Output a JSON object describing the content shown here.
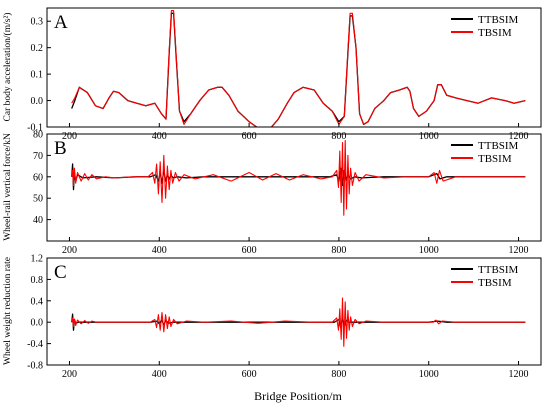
{
  "colors": {
    "TTBSIM": "#000000",
    "TBSIM": "#ff0000"
  },
  "xlabel": "Bridge Position/m",
  "chart_data": [
    {
      "type": "line",
      "panel_letter": "A",
      "ylabel": "Car body acceleration/(m/s²)",
      "xlim": [
        150,
        1250
      ],
      "ylim": [
        -0.1,
        0.35
      ],
      "xticks": [
        200,
        400,
        600,
        800,
        1000,
        1200
      ],
      "yticks": [
        -0.1,
        0.0,
        0.1,
        0.2,
        0.3
      ],
      "ytick_labels": [
        "-0.1",
        "0.0",
        "0.1",
        "0.2",
        "0.3"
      ],
      "legend_position": "top-right",
      "series": [
        {
          "name": "TTBSIM",
          "x": [
            205,
            212,
            222,
            240,
            258,
            275,
            288,
            298,
            310,
            330,
            350,
            370,
            390,
            405,
            415,
            422,
            427,
            432,
            437,
            445,
            455,
            470,
            490,
            510,
            530,
            540,
            555,
            575,
            600,
            625,
            645,
            665,
            685,
            700,
            720,
            745,
            765,
            785,
            800,
            812,
            820,
            825,
            830,
            838,
            846,
            855,
            865,
            880,
            900,
            915,
            935,
            952,
            958,
            966,
            978,
            995,
            1012,
            1020,
            1028,
            1040,
            1060,
            1085,
            1110,
            1140,
            1170,
            1190,
            1215
          ],
          "y": [
            -0.03,
            0.0,
            0.05,
            0.03,
            -0.02,
            -0.03,
            0.01,
            0.035,
            0.03,
            0.0,
            -0.01,
            -0.02,
            -0.01,
            -0.05,
            -0.07,
            0.18,
            0.33,
            0.33,
            0.18,
            -0.04,
            -0.08,
            -0.05,
            0.0,
            0.04,
            0.05,
            0.05,
            0.02,
            -0.04,
            -0.08,
            -0.11,
            -0.11,
            -0.07,
            -0.01,
            0.03,
            0.05,
            0.04,
            -0.01,
            -0.04,
            -0.08,
            -0.06,
            0.18,
            0.32,
            0.32,
            0.2,
            -0.05,
            -0.09,
            -0.08,
            -0.03,
            0.0,
            0.03,
            0.04,
            0.05,
            0.035,
            -0.03,
            -0.06,
            -0.04,
            0.0,
            0.06,
            0.06,
            0.02,
            0.01,
            0.0,
            -0.01,
            0.01,
            0.0,
            -0.01,
            0.0
          ]
        },
        {
          "name": "TBSIM",
          "x": [
            205,
            212,
            222,
            240,
            258,
            275,
            288,
            298,
            310,
            330,
            350,
            370,
            390,
            405,
            415,
            422,
            427,
            432,
            437,
            445,
            455,
            470,
            490,
            510,
            530,
            540,
            555,
            575,
            600,
            625,
            645,
            665,
            685,
            700,
            720,
            745,
            765,
            785,
            800,
            812,
            820,
            825,
            830,
            838,
            846,
            855,
            865,
            880,
            900,
            915,
            935,
            952,
            958,
            966,
            978,
            995,
            1012,
            1020,
            1028,
            1040,
            1060,
            1085,
            1110,
            1140,
            1170,
            1190,
            1215
          ],
          "y": [
            -0.01,
            0.01,
            0.05,
            0.03,
            -0.02,
            -0.03,
            0.01,
            0.035,
            0.03,
            0.0,
            -0.01,
            -0.02,
            -0.01,
            -0.05,
            -0.07,
            0.19,
            0.34,
            0.34,
            0.19,
            -0.04,
            -0.09,
            -0.05,
            0.0,
            0.04,
            0.05,
            0.05,
            0.02,
            -0.04,
            -0.08,
            -0.11,
            -0.11,
            -0.07,
            -0.01,
            0.03,
            0.05,
            0.04,
            -0.01,
            -0.04,
            -0.09,
            -0.06,
            0.19,
            0.33,
            0.33,
            0.2,
            -0.05,
            -0.09,
            -0.08,
            -0.03,
            0.0,
            0.03,
            0.04,
            0.05,
            0.035,
            -0.03,
            -0.06,
            -0.04,
            0.0,
            0.06,
            0.06,
            0.02,
            0.01,
            0.0,
            -0.01,
            0.01,
            0.0,
            -0.01,
            0.0
          ]
        }
      ]
    },
    {
      "type": "line",
      "panel_letter": "B",
      "ylabel": "Wheel-rail vertical force/kN",
      "xlim": [
        150,
        1250
      ],
      "ylim": [
        30,
        80
      ],
      "xticks": [
        200,
        400,
        600,
        800,
        1000,
        1200
      ],
      "yticks": [
        40,
        50,
        60,
        70,
        80
      ],
      "ytick_labels": [
        "40",
        "50",
        "60",
        "70",
        "80"
      ],
      "legend_position": "top-right",
      "series": [
        {
          "name": "TTBSIM",
          "x": [
            205,
            207,
            209,
            211,
            214,
            218,
            230,
            260,
            300,
            350,
            380,
            392,
            398,
            402,
            406,
            410,
            414,
            418,
            422,
            426,
            432,
            440,
            460,
            500,
            540,
            580,
            620,
            660,
            700,
            740,
            780,
            795,
            800,
            804,
            808,
            812,
            816,
            820,
            826,
            835,
            850,
            900,
            950,
            1000,
            1018,
            1025,
            1040,
            1100,
            1150,
            1215
          ],
          "y": [
            60,
            66,
            54,
            62,
            58,
            61,
            59.5,
            60,
            59.5,
            60,
            60,
            61,
            58,
            62,
            57,
            63,
            58,
            61,
            59,
            60.5,
            59.5,
            60,
            59.5,
            60,
            60,
            60,
            60,
            60,
            60,
            60,
            60,
            61,
            58,
            64,
            56,
            63,
            58,
            61,
            59,
            60,
            59.5,
            60,
            60,
            60,
            61.5,
            59,
            60,
            60,
            60,
            60
          ]
        },
        {
          "name": "TBSIM",
          "x": [
            205,
            207,
            209,
            211,
            214,
            218,
            226,
            234,
            242,
            250,
            260,
            280,
            300,
            340,
            375,
            385,
            390,
            394,
            398,
            402,
            406,
            410,
            414,
            418,
            422,
            426,
            430,
            436,
            444,
            455,
            480,
            520,
            560,
            600,
            630,
            660,
            690,
            720,
            760,
            785,
            795,
            799,
            802,
            805,
            808,
            811,
            814,
            817,
            820,
            823,
            826,
            830,
            836,
            845,
            860,
            900,
            950,
            1000,
            1012,
            1018,
            1024,
            1032,
            1060,
            1100,
            1150,
            1215
          ],
          "y": [
            60,
            63,
            56,
            64,
            57,
            62,
            58,
            61.5,
            58.5,
            61,
            59,
            60,
            59.5,
            60,
            60,
            62,
            57,
            66,
            52,
            67,
            48,
            70,
            50,
            65,
            54,
            63,
            57,
            62,
            58,
            61,
            59,
            61,
            58,
            62,
            58.5,
            61.5,
            58.5,
            61,
            59,
            60,
            63,
            55,
            72,
            48,
            76,
            42,
            77,
            45,
            70,
            52,
            64,
            56,
            62,
            58,
            61,
            59.5,
            60,
            60,
            62,
            57,
            63,
            58,
            60,
            60,
            60,
            60
          ]
        }
      ]
    },
    {
      "type": "line",
      "panel_letter": "C",
      "ylabel": "Wheel weight reduction rate",
      "xlim": [
        150,
        1250
      ],
      "ylim": [
        -0.8,
        1.2
      ],
      "xticks": [
        200,
        400,
        600,
        800,
        1000,
        1200
      ],
      "yticks": [
        -0.8,
        -0.4,
        0.0,
        0.4,
        0.8,
        1.2
      ],
      "ytick_labels": [
        "-0.8",
        "-0.4",
        "0.0",
        "0.4",
        "0.8",
        "1.2"
      ],
      "legend_position": "top-right",
      "series": [
        {
          "name": "TTBSIM",
          "x": [
            205,
            207,
            209,
            211,
            214,
            220,
            260,
            300,
            350,
            380,
            395,
            400,
            405,
            410,
            415,
            420,
            430,
            460,
            520,
            600,
            680,
            760,
            790,
            800,
            804,
            808,
            812,
            816,
            822,
            840,
            900,
            1000,
            1020,
            1040,
            1100,
            1215
          ],
          "y": [
            0.0,
            0.15,
            -0.15,
            0.05,
            -0.02,
            0.0,
            0.0,
            0.0,
            0.0,
            0.0,
            0.02,
            -0.03,
            0.04,
            -0.04,
            0.03,
            -0.02,
            0.0,
            0.0,
            0.0,
            0.0,
            0.0,
            0.0,
            0.0,
            0.05,
            -0.1,
            0.1,
            -0.08,
            0.04,
            0.0,
            0.0,
            0.0,
            0.0,
            0.02,
            0.0,
            0.0,
            0.0
          ]
        },
        {
          "name": "TBSIM",
          "x": [
            205,
            207,
            209,
            211,
            214,
            218,
            226,
            234,
            242,
            250,
            260,
            300,
            340,
            380,
            390,
            394,
            398,
            402,
            406,
            410,
            414,
            418,
            422,
            426,
            432,
            440,
            460,
            500,
            560,
            620,
            680,
            740,
            785,
            795,
            799,
            802,
            805,
            808,
            811,
            814,
            817,
            820,
            823,
            826,
            830,
            836,
            845,
            860,
            900,
            950,
            1010,
            1016,
            1022,
            1030,
            1060,
            1100,
            1215
          ],
          "y": [
            0.0,
            0.08,
            -0.08,
            0.06,
            -0.06,
            0.04,
            -0.03,
            0.03,
            -0.02,
            0.02,
            0.0,
            0.0,
            0.0,
            0.0,
            0.05,
            -0.1,
            0.14,
            -0.15,
            0.18,
            -0.18,
            0.14,
            -0.12,
            0.1,
            -0.08,
            0.05,
            -0.03,
            0.02,
            0.0,
            0.02,
            -0.02,
            0.02,
            0.0,
            0.0,
            0.08,
            -0.15,
            0.25,
            -0.32,
            0.45,
            -0.45,
            0.38,
            -0.3,
            0.22,
            -0.15,
            0.1,
            -0.08,
            0.05,
            -0.03,
            0.02,
            0.0,
            0.0,
            0.0,
            0.04,
            -0.03,
            0.02,
            0.0,
            0.0,
            0.0
          ]
        }
      ]
    }
  ]
}
